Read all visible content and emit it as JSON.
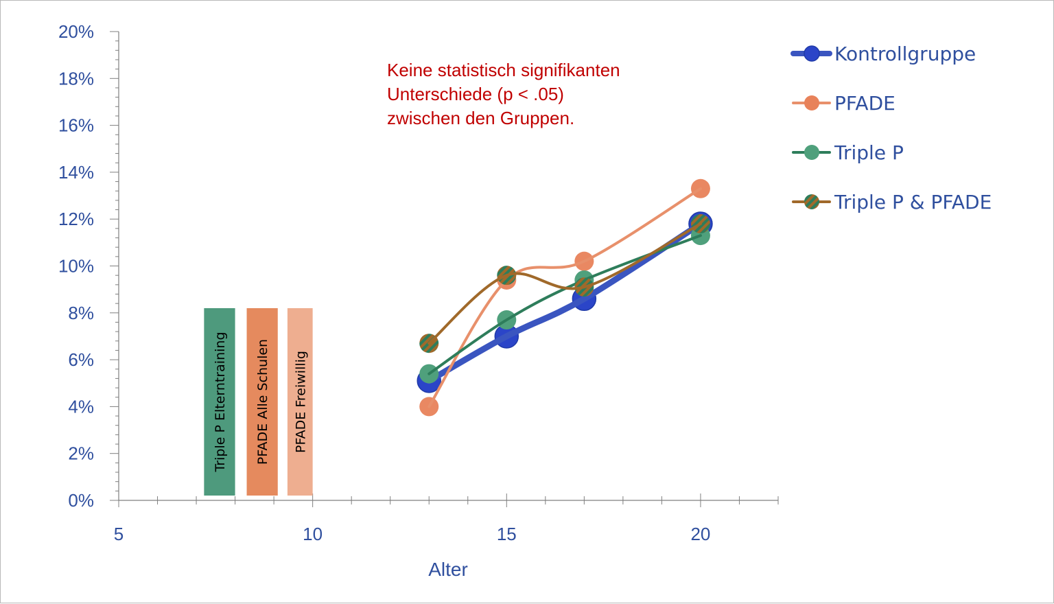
{
  "chart_data": {
    "type": "line",
    "xlabel": "Alter",
    "ylabel": "",
    "xlim": [
      5,
      22
    ],
    "ylim": [
      0,
      20
    ],
    "x_ticks": [
      5,
      10,
      15,
      20
    ],
    "y_ticks": [
      "0%",
      "2%",
      "4%",
      "6%",
      "8%",
      "10%",
      "12%",
      "14%",
      "16%",
      "18%",
      "20%"
    ],
    "legend_position": "right",
    "annotation": [
      "Keine statistisch signifikanten",
      "Unterschiede (p < .05)",
      "zwischen den Gruppen."
    ],
    "series": [
      {
        "name": "Kontrollgruppe",
        "color": "#3a55c0",
        "marker_fill": "#2b45c8",
        "x": [
          13,
          15,
          17,
          20
        ],
        "y": [
          5.1,
          7.0,
          8.6,
          11.8
        ]
      },
      {
        "name": "PFADE",
        "color": "#e8906b",
        "marker_fill": "#e8825a",
        "x": [
          13,
          15,
          17,
          20
        ],
        "y": [
          4.0,
          9.4,
          10.2,
          13.3
        ]
      },
      {
        "name": "Triple P",
        "color": "#2e7d5b",
        "marker_fill": "#4fa07c",
        "x": [
          13,
          15,
          17,
          20
        ],
        "y": [
          5.4,
          7.7,
          9.4,
          11.3
        ]
      },
      {
        "name": "Triple P & PFADE",
        "color": "#a0692a",
        "marker_fill": "striped",
        "x": [
          13,
          15,
          17,
          20
        ],
        "y": [
          6.7,
          9.6,
          9.1,
          11.8
        ]
      }
    ],
    "program_bars": [
      {
        "label": "Triple P Elterntraining",
        "x_from": 7.2,
        "x_to": 8.0,
        "y": 8.2,
        "color": "#4e9a7d"
      },
      {
        "label": "PFADE Alle Schulen",
        "x_from": 8.3,
        "x_to": 9.1,
        "y": 8.2,
        "color": "#e58a5e"
      },
      {
        "label": "PFADE Freiwillig",
        "x_from": 9.35,
        "x_to": 10.0,
        "y": 8.2,
        "color": "#eeae90"
      }
    ]
  }
}
